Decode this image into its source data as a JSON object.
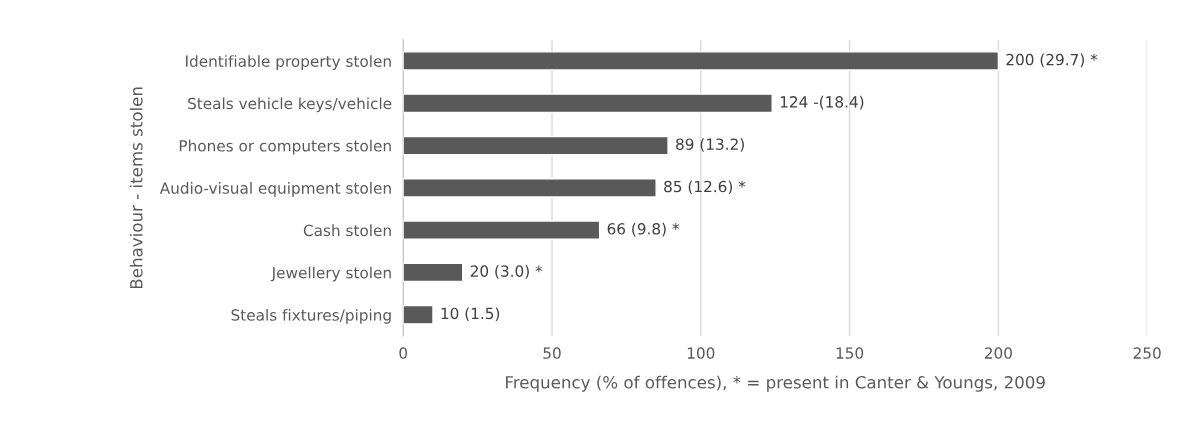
{
  "chart_data": {
    "type": "bar",
    "orientation": "horizontal",
    "categories": [
      "Identifiable property stolen",
      "Steals vehicle keys/vehicle",
      "Phones or computers stolen",
      "Audio-visual equipment stolen",
      "Cash stolen",
      "Jewellery stolen",
      "Steals fixtures/piping"
    ],
    "values": [
      200,
      124,
      89,
      85,
      66,
      20,
      10
    ],
    "value_labels": [
      "200 (29.7) *",
      "124 -(18.4)",
      "89 (13.2)",
      "85 (12.6) *",
      "66 (9.8) *",
      "20 (3.0) *",
      "10 (1.5)"
    ],
    "color": "#595959",
    "xlim": [
      0,
      250
    ],
    "xticks": [
      0,
      50,
      100,
      150,
      200,
      250
    ],
    "grid": "x",
    "xlabel": "Frequency (% of offences), * = present in Canter & Youngs, 2009",
    "ylabel": "Behaviour - items stolen"
  }
}
